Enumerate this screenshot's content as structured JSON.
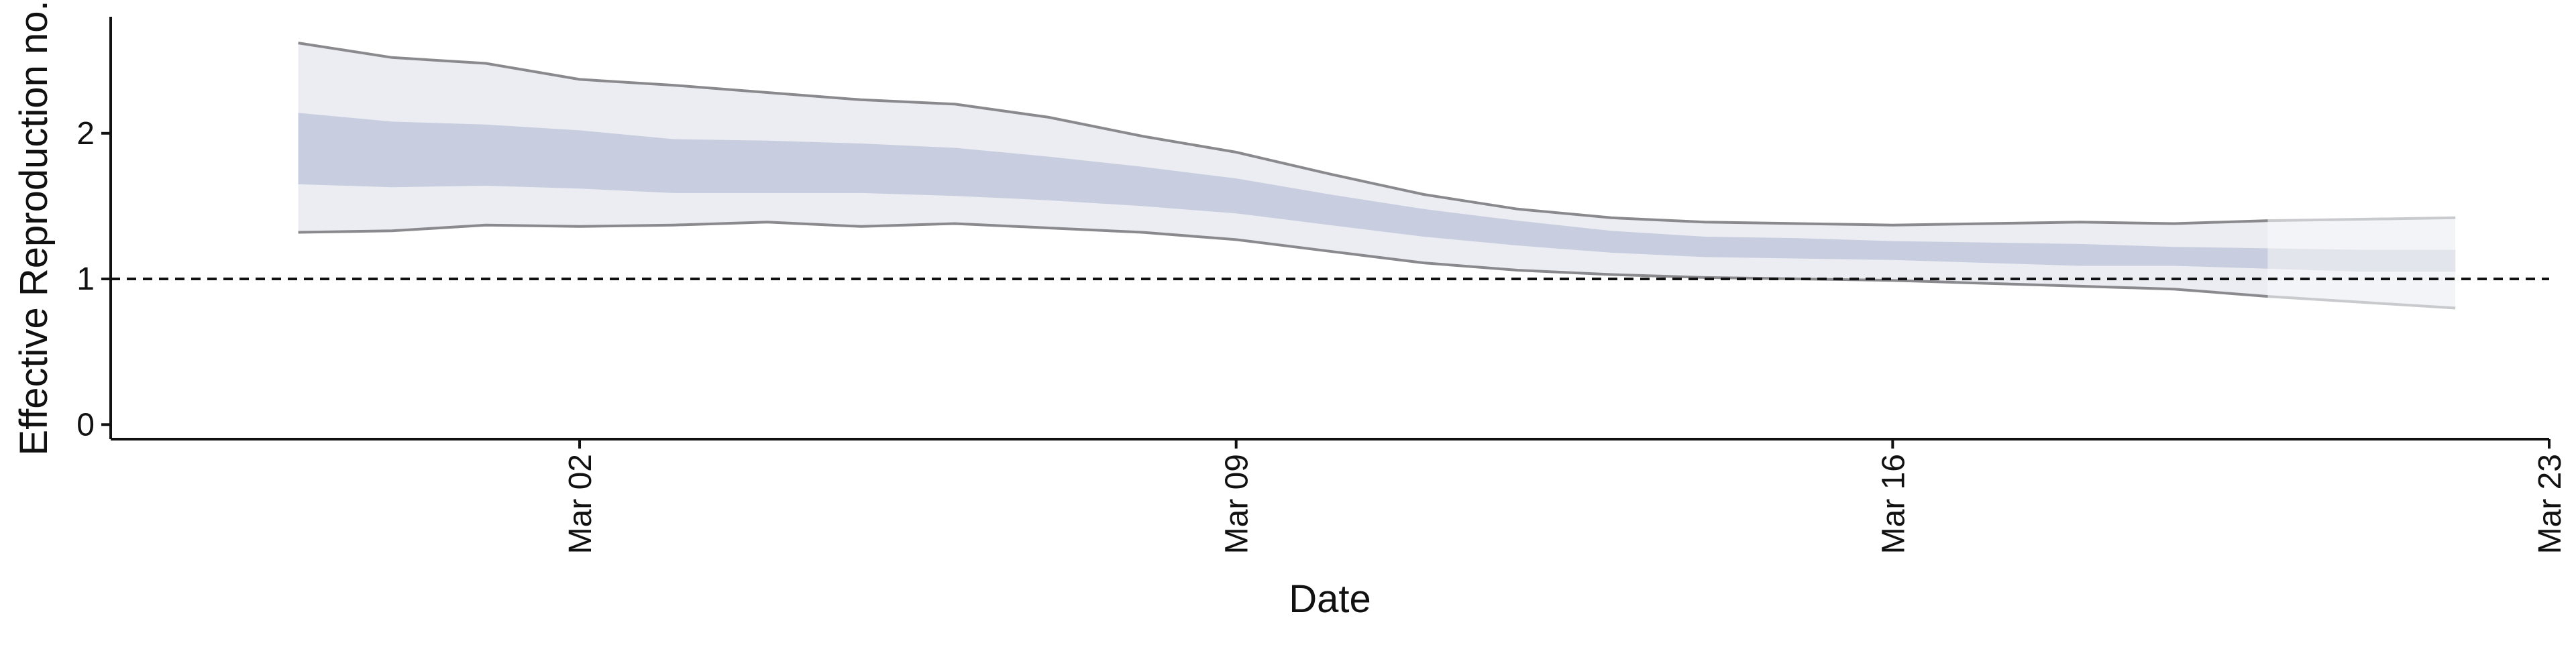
{
  "chart_data": {
    "type": "area",
    "title": "",
    "xlabel": "Date",
    "ylabel": "Effective Reproduction no.",
    "x_ticks": [
      "Mar 02",
      "Mar 09",
      "Mar 16",
      "Mar 23"
    ],
    "x_tick_dates": [
      "2020-03-02",
      "2020-03-09",
      "2020-03-16",
      "2020-03-23"
    ],
    "y_ticks": [
      0,
      1,
      2
    ],
    "xlim": [
      "2020-02-26",
      "2020-03-23"
    ],
    "ylim": [
      -0.1,
      2.8
    ],
    "reference_line": 1,
    "grid": false,
    "legend": "none",
    "colors": {
      "outer_band": "#ebedf3",
      "inner_band": "#c8cedf",
      "bound_line": "#8a8a8e",
      "forecast_outer_band": "#f3f4f7",
      "forecast_inner_band": "#e3e5ec",
      "axis": "#111111"
    },
    "dates": [
      "2020-02-28",
      "2020-02-29",
      "2020-03-01",
      "2020-03-02",
      "2020-03-03",
      "2020-03-04",
      "2020-03-05",
      "2020-03-06",
      "2020-03-07",
      "2020-03-08",
      "2020-03-09",
      "2020-03-10",
      "2020-03-11",
      "2020-03-12",
      "2020-03-13",
      "2020-03-14",
      "2020-03-15",
      "2020-03-16",
      "2020-03-17",
      "2020-03-18",
      "2020-03-19",
      "2020-03-20",
      "2020-03-21",
      "2020-03-22"
    ],
    "series": [
      {
        "values_lower_90": [
          1.32,
          1.33,
          1.37,
          1.36,
          1.37,
          1.39,
          1.36,
          1.38,
          1.35,
          1.32,
          1.27,
          1.19,
          1.11,
          1.06,
          1.03,
          1.01,
          1.0,
          0.99,
          0.97,
          0.95,
          0.93,
          0.88,
          0.84,
          0.8
        ],
        "values_lower_50": [
          1.65,
          1.63,
          1.64,
          1.62,
          1.59,
          1.59,
          1.59,
          1.57,
          1.54,
          1.5,
          1.45,
          1.37,
          1.29,
          1.23,
          1.18,
          1.15,
          1.14,
          1.13,
          1.11,
          1.09,
          1.09,
          1.07,
          1.05,
          1.05
        ],
        "values_upper_50": [
          2.14,
          2.08,
          2.06,
          2.02,
          1.96,
          1.95,
          1.93,
          1.9,
          1.84,
          1.77,
          1.69,
          1.58,
          1.48,
          1.4,
          1.33,
          1.29,
          1.28,
          1.26,
          1.25,
          1.24,
          1.22,
          1.21,
          1.2,
          1.2
        ],
        "values_upper_90": [
          2.62,
          2.52,
          2.48,
          2.37,
          2.33,
          2.28,
          2.23,
          2.2,
          2.11,
          1.98,
          1.87,
          1.72,
          1.58,
          1.48,
          1.42,
          1.39,
          1.38,
          1.37,
          1.38,
          1.39,
          1.38,
          1.4,
          1.41,
          1.42
        ]
      }
    ],
    "forecast_from": "2020-03-20"
  }
}
